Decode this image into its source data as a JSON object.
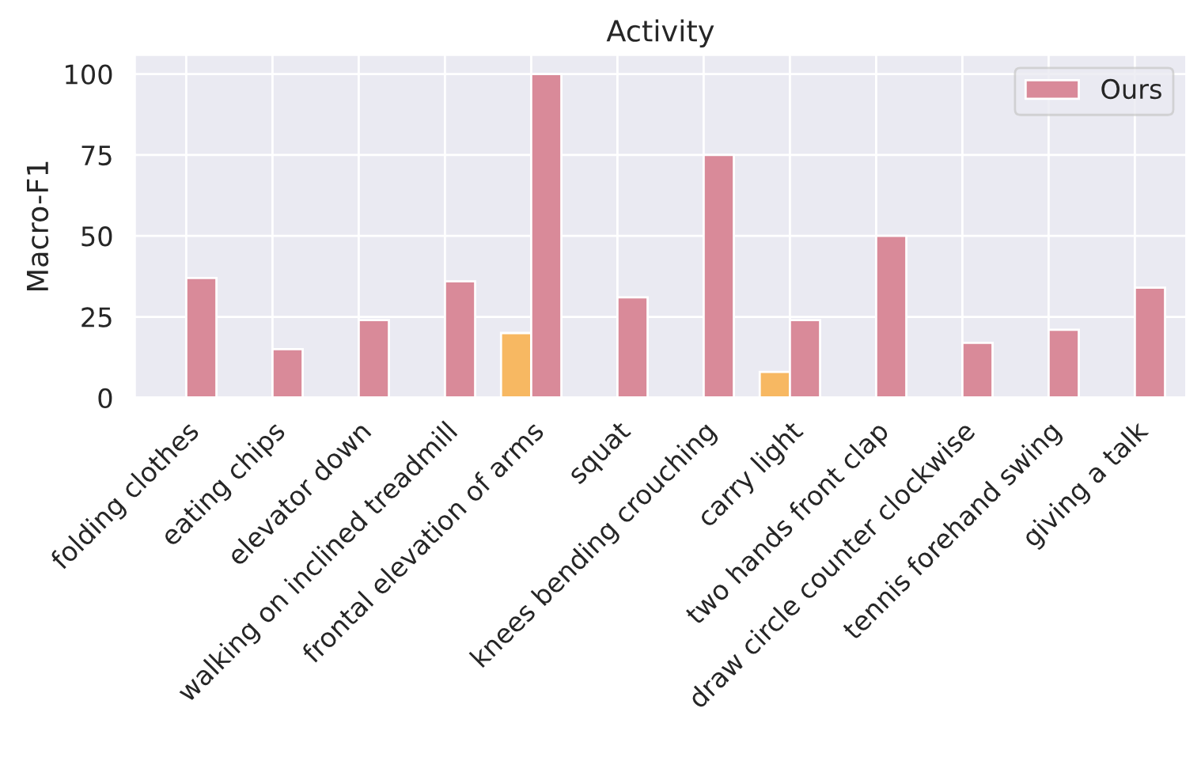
{
  "chart_data": {
    "type": "bar",
    "title": "Activity",
    "ylabel": "Macro-F1",
    "categories": [
      "folding clothes",
      "eating chips",
      "elevator down",
      "walking on inclined treadmill",
      "frontal elevation of arms",
      "squat",
      "knees bending crouching",
      "carry light",
      "two hands front clap",
      "draw circle counter clockwise",
      "tennis forehand swing",
      "giving a talk"
    ],
    "series": [
      {
        "color": "#f7b862",
        "values": [
          null,
          null,
          null,
          null,
          20,
          null,
          null,
          8,
          null,
          null,
          null,
          null
        ]
      },
      {
        "name": "Ours",
        "color": "#d98a99",
        "values": [
          37,
          15,
          24,
          36,
          100,
          31,
          75,
          24,
          50,
          17,
          21,
          34
        ]
      }
    ],
    "ylim": [
      0,
      106
    ],
    "yticks": [
      0,
      25,
      50,
      75,
      100
    ],
    "grid": true,
    "legend": "top right"
  }
}
